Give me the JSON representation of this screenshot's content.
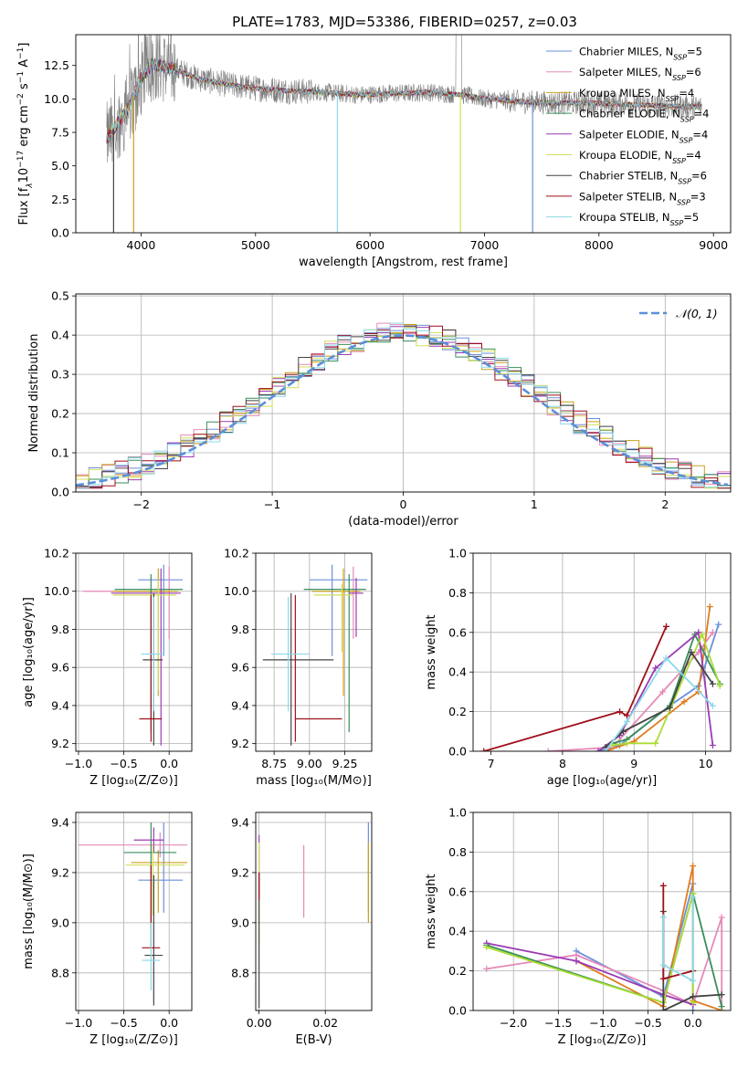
{
  "figure": {
    "title": "PLATE=1783, MJD=53386, FIBERID=0257, z=0.03"
  },
  "colors": {
    "spec_obs": "#808080",
    "normal": "#5b8fd9",
    "models": [
      "#6a8fdb",
      "#e68ab8",
      "#c8a21a",
      "#3a8e5a",
      "#9b3bb5",
      "#d4de5a",
      "#444444",
      "#a00f1a",
      "#8cd8e8"
    ],
    "weights_orange": "#e07b1f",
    "weights_lime": "#aadd33"
  },
  "chart_data": [
    {
      "type": "line",
      "id": "spectrum",
      "xlabel": "wavelength [Angstrom, rest frame]",
      "ylabel_parts": [
        "Flux [f",
        "λ",
        "10",
        "−17",
        " erg cm",
        "−2",
        " s",
        "−1",
        " A",
        "−1",
        "]"
      ],
      "xlim": [
        3430,
        9150
      ],
      "ylim": [
        0,
        14.8
      ],
      "x_ticks": [
        4000,
        5000,
        6000,
        7000,
        8000,
        9000
      ],
      "x_tick_labels": [
        "4000",
        "5000",
        "6000",
        "7000",
        "8000",
        "9000"
      ],
      "y_ticks": [
        0,
        2.5,
        5,
        7.5,
        10,
        12.5
      ],
      "y_tick_labels": [
        "0.0",
        "2.5",
        "5.0",
        "7.5",
        "10.0",
        "12.5"
      ],
      "grid": false,
      "legend_position": "top-right",
      "series": [
        {
          "name": "Chabrier MILES, N",
          "sub": "SSP",
          "suffix": "=5"
        },
        {
          "name": "Salpeter MILES, N",
          "sub": "SSP",
          "suffix": "=6"
        },
        {
          "name": "Kroupa MILES, N",
          "sub": "SSP",
          "suffix": "=4"
        },
        {
          "name": "Chabrier ELODIE, N",
          "sub": "SSP",
          "suffix": "=4"
        },
        {
          "name": "Salpeter ELODIE, N",
          "sub": "SSP",
          "suffix": "=4"
        },
        {
          "name": "Kroupa ELODIE, N",
          "sub": "SSP",
          "suffix": "=4"
        },
        {
          "name": "Chabrier STELIB, N",
          "sub": "SSP",
          "suffix": "=6"
        },
        {
          "name": "Salpeter STELIB, N",
          "sub": "SSP",
          "suffix": "=3"
        },
        {
          "name": "Kroupa STELIB, N",
          "sub": "SSP",
          "suffix": "=5"
        }
      ],
      "continuum_x": [
        3700,
        3900,
        4000,
        4100,
        4300,
        4500,
        4800,
        5000,
        5300,
        5600,
        5900,
        6200,
        6500,
        6800,
        7000,
        7300,
        7600,
        7900,
        8200,
        8500,
        8900
      ],
      "continuum_y": [
        7.0,
        9.5,
        11.5,
        12.6,
        12.2,
        11.5,
        11.0,
        10.8,
        10.6,
        10.5,
        10.3,
        10.4,
        10.5,
        10.3,
        10.0,
        9.8,
        9.7,
        9.7,
        9.6,
        9.5,
        9.4
      ],
      "absorption_lines": [
        {
          "x": 3760,
          "depth": 0.0,
          "series": 6
        },
        {
          "x": 3935,
          "depth": 0.0,
          "series": 2
        },
        {
          "x": 5715,
          "depth": 0.0,
          "series": 8
        },
        {
          "x": 6790,
          "depth": 0.0,
          "series": 5
        },
        {
          "x": 7420,
          "depth": 0.0,
          "series": 0
        }
      ]
    },
    {
      "type": "histogram",
      "id": "residuals",
      "xlabel": "(data-model)/error",
      "ylabel": "Normed distribution",
      "xlim": [
        -2.5,
        2.5
      ],
      "ylim": [
        0,
        0.505
      ],
      "x_ticks": [
        -2,
        -1,
        0,
        1,
        2
      ],
      "x_tick_labels": [
        "−2",
        "−1",
        "0",
        "1",
        "2"
      ],
      "y_ticks": [
        0,
        0.1,
        0.2,
        0.3,
        0.4,
        0.5
      ],
      "y_tick_labels": [
        "0.0",
        "0.1",
        "0.2",
        "0.3",
        "0.4",
        "0.5"
      ],
      "grid": true,
      "bin_width": 0.1,
      "legend": {
        "label": "𝒩(0, 1)",
        "position": "top-right"
      },
      "reference_curve": "normal(0,1)"
    },
    {
      "type": "scatter",
      "id": "age_vs_Z",
      "xlabel": "Z [log₁₀(Z/Z⊙)]",
      "ylabel": "age  [log₁₀(age/yr)]",
      "xlim": [
        -1.03,
        0.25
      ],
      "ylim": [
        9.16,
        10.2
      ],
      "x_ticks": [
        -1.0,
        -0.5,
        0.0
      ],
      "x_tick_labels": [
        "−1.0",
        "−0.5",
        "0.0"
      ],
      "y_ticks": [
        9.2,
        9.4,
        9.6,
        9.8,
        10.0,
        10.2
      ],
      "y_tick_labels": [
        "9.2",
        "9.4",
        "9.6",
        "9.8",
        "10.0",
        "10.2"
      ],
      "grid": true,
      "points": [
        {
          "x": -0.06,
          "xerr": [
            0.28,
            0.21
          ],
          "y": 10.06,
          "yerr": [
            0.4,
            0.08
          ],
          "series": 0
        },
        {
          "x": 0.0,
          "xerr": [
            0.95,
            0.01
          ],
          "y": 10.0,
          "yerr": [
            0.25,
            0.13
          ],
          "series": 1
        },
        {
          "x": -0.12,
          "xerr": [
            0.5,
            0.22
          ],
          "y": 10.0,
          "yerr": [
            0.55,
            0.12
          ],
          "series": 2
        },
        {
          "x": -0.2,
          "xerr": [
            0.4,
            0.35
          ],
          "y": 10.01,
          "yerr": [
            0.75,
            0.08
          ],
          "series": 3
        },
        {
          "x": -0.09,
          "xerr": [
            0.55,
            0.22
          ],
          "y": 9.99,
          "yerr": [
            0.8,
            0.13
          ],
          "series": 4
        },
        {
          "x": -0.12,
          "xerr": [
            0.5,
            0.2
          ],
          "y": 9.98,
          "yerr": [
            0.5,
            0.08
          ],
          "series": 5
        },
        {
          "x": -0.17,
          "xerr": [
            0.12,
            0.1
          ],
          "y": 9.64,
          "yerr": [
            0.45,
            0.35
          ],
          "series": 6
        },
        {
          "x": -0.2,
          "xerr": [
            0.13,
            0.12
          ],
          "y": 9.33,
          "yerr": [
            0.12,
            0.65
          ],
          "series": 7
        },
        {
          "x": -0.17,
          "xerr": [
            0.14,
            0.12
          ],
          "y": 9.67,
          "yerr": [
            0.3,
            0.3
          ],
          "series": 8
        }
      ]
    },
    {
      "type": "scatter",
      "id": "age_vs_mass",
      "xlabel": "mass [log₁₀(M/M⊙)]",
      "ylabel": "",
      "xlim": [
        8.62,
        9.44
      ],
      "ylim": [
        9.16,
        10.2
      ],
      "x_ticks": [
        8.75,
        9.0,
        9.25
      ],
      "x_tick_labels": [
        "8.75",
        "9.00",
        "9.25"
      ],
      "y_ticks": [
        9.2,
        9.4,
        9.6,
        9.8,
        10.0,
        10.2
      ],
      "y_tick_labels": [
        "9.2",
        "9.4",
        "9.6",
        "9.8",
        "10.0",
        "10.2"
      ],
      "grid": true,
      "points": [
        {
          "x": 9.16,
          "xerr": [
            0.16,
            0.25
          ],
          "y": 10.06,
          "yerr": [
            0.4,
            0.08
          ],
          "series": 0
        },
        {
          "x": 9.31,
          "xerr": [
            0.05,
            0.05
          ],
          "y": 10.0,
          "yerr": [
            0.25,
            0.13
          ],
          "series": 1
        },
        {
          "x": 9.24,
          "xerr": [
            0.22,
            0.12
          ],
          "y": 10.0,
          "yerr": [
            0.55,
            0.12
          ],
          "series": 2
        },
        {
          "x": 9.28,
          "xerr": [
            0.32,
            0.12
          ],
          "y": 10.01,
          "yerr": [
            0.75,
            0.08
          ],
          "series": 3
        },
        {
          "x": 9.33,
          "xerr": [
            0.05,
            0.05
          ],
          "y": 9.99,
          "yerr": [
            0.23,
            0.08
          ],
          "series": 4
        },
        {
          "x": 9.23,
          "xerr": [
            0.2,
            0.08
          ],
          "y": 9.98,
          "yerr": [
            0.3,
            0.06
          ],
          "series": 5
        },
        {
          "x": 8.87,
          "xerr": [
            0.2,
            0.3
          ],
          "y": 9.64,
          "yerr": [
            0.45,
            0.35
          ],
          "series": 6
        },
        {
          "x": 8.9,
          "xerr": [
            0.0,
            0.33
          ],
          "y": 9.33,
          "yerr": [
            0.12,
            0.65
          ],
          "series": 7
        },
        {
          "x": 8.85,
          "xerr": [
            0.12,
            0.15
          ],
          "y": 9.67,
          "yerr": [
            0.3,
            0.3
          ],
          "series": 8
        }
      ]
    },
    {
      "type": "line",
      "id": "massweight_vs_age",
      "xlabel": "age  [log₁₀(age/yr)]",
      "ylabel": "mass weight",
      "xlim": [
        6.75,
        10.35
      ],
      "ylim": [
        0,
        1.0
      ],
      "x_ticks": [
        7,
        8,
        9,
        10
      ],
      "x_tick_labels": [
        "7",
        "8",
        "9",
        "10"
      ],
      "y_ticks": [
        0,
        0.2,
        0.4,
        0.6,
        0.8,
        1.0
      ],
      "y_tick_labels": [
        "0.0",
        "0.2",
        "0.4",
        "0.6",
        "0.8",
        "1.0"
      ],
      "grid": true,
      "series": [
        {
          "color": "#6a8fdb",
          "x": [
            8.5,
            8.8,
            9.5,
            9.9,
            10.18
          ],
          "y": [
            0.0,
            0.03,
            0.23,
            0.33,
            0.64
          ]
        },
        {
          "color": "#e68ab8",
          "x": [
            7.8,
            8.7,
            9.4,
            9.9,
            10.1
          ],
          "y": [
            0.0,
            0.02,
            0.3,
            0.5,
            0.6
          ]
        },
        {
          "color": "#e07b1f",
          "x": [
            8.6,
            9.0,
            9.7,
            9.9,
            10.06
          ],
          "y": [
            0.0,
            0.05,
            0.25,
            0.3,
            0.73
          ]
        },
        {
          "color": "#3a8e5a",
          "x": [
            8.7,
            8.9,
            9.5,
            9.85,
            10.2
          ],
          "y": [
            0.04,
            0.06,
            0.23,
            0.59,
            0.34
          ]
        },
        {
          "color": "#9b3bb5",
          "x": [
            8.5,
            8.8,
            9.3,
            9.9,
            10.1
          ],
          "y": [
            0.0,
            0.08,
            0.42,
            0.6,
            0.03
          ]
        },
        {
          "color": "#aadd33",
          "x": [
            8.7,
            8.9,
            9.3,
            9.95,
            10.2
          ],
          "y": [
            0.03,
            0.04,
            0.04,
            0.59,
            0.33
          ]
        },
        {
          "color": "#444444",
          "x": [
            8.6,
            8.85,
            9.5,
            9.8,
            10.1
          ],
          "y": [
            0.02,
            0.1,
            0.22,
            0.5,
            0.34
          ]
        },
        {
          "color": "#a00f1a",
          "x": [
            6.9,
            8.8,
            8.9,
            9.45
          ],
          "y": [
            0.0,
            0.2,
            0.18,
            0.63
          ]
        },
        {
          "color": "#8cd8e8",
          "x": [
            8.6,
            8.9,
            9.45,
            10.1
          ],
          "y": [
            0.0,
            0.15,
            0.47,
            0.23
          ]
        }
      ]
    },
    {
      "type": "scatter",
      "id": "mass_vs_Z",
      "xlabel": "Z [log₁₀(Z/Z⊙)]",
      "ylabel": "mass [log₁₀(M/M⊙)]",
      "xlim": [
        -1.03,
        0.25
      ],
      "ylim": [
        8.65,
        9.44
      ],
      "x_ticks": [
        -1.0,
        -0.5,
        0.0
      ],
      "x_tick_labels": [
        "−1.0",
        "−0.5",
        "0.0"
      ],
      "y_ticks": [
        8.8,
        9.0,
        9.2,
        9.4
      ],
      "y_tick_labels": [
        "8.8",
        "9.0",
        "9.2",
        "9.4"
      ],
      "grid": true,
      "points": [
        {
          "x": -0.06,
          "xerr": [
            0.28,
            0.21
          ],
          "y": 9.17,
          "yerr": [
            0.13,
            0.23
          ],
          "series": 0
        },
        {
          "x": -0.1,
          "xerr": [
            0.9,
            0.3
          ],
          "y": 9.31,
          "yerr": [
            0.05,
            0.05
          ],
          "series": 1
        },
        {
          "x": -0.12,
          "xerr": [
            0.3,
            0.32
          ],
          "y": 9.24,
          "yerr": [
            0.2,
            0.05
          ],
          "series": 2
        },
        {
          "x": -0.2,
          "xerr": [
            0.3,
            0.28
          ],
          "y": 9.28,
          "yerr": [
            0.3,
            0.12
          ],
          "series": 3
        },
        {
          "x": -0.17,
          "xerr": [
            0.22,
            0.11
          ],
          "y": 9.33,
          "yerr": [
            0.05,
            0.05
          ],
          "series": 4
        },
        {
          "x": -0.18,
          "xerr": [
            0.3,
            0.35
          ],
          "y": 9.23,
          "yerr": [
            0.2,
            0.08
          ],
          "series": 5
        },
        {
          "x": -0.17,
          "xerr": [
            0.1,
            0.1
          ],
          "y": 8.87,
          "yerr": [
            0.2,
            0.32
          ],
          "series": 6
        },
        {
          "x": -0.2,
          "xerr": [
            0.1,
            0.1
          ],
          "y": 8.9,
          "yerr": [
            0.0,
            0.33
          ],
          "series": 7
        },
        {
          "x": -0.2,
          "xerr": [
            0.1,
            0.1
          ],
          "y": 8.85,
          "yerr": [
            0.12,
            0.15
          ],
          "series": 8
        }
      ]
    },
    {
      "type": "scatter",
      "id": "mass_vs_ebv",
      "xlabel": "E(B-V)",
      "ylabel": "",
      "xlim": [
        -0.001,
        0.034
      ],
      "ylim": [
        8.65,
        9.44
      ],
      "x_ticks": [
        0.0,
        0.02
      ],
      "x_tick_labels": [
        "0.00",
        "0.02"
      ],
      "y_ticks": [
        8.8,
        9.0,
        9.2,
        9.4
      ],
      "y_tick_labels": [
        "8.8",
        "9.0",
        "9.2",
        "9.4"
      ],
      "grid": true,
      "points": [
        {
          "x": 0.0,
          "y": 9.2,
          "yerr": [
            0.1,
            0.15
          ],
          "series": 4
        },
        {
          "x": 0.0,
          "y": 9.1,
          "yerr": [
            0.2,
            0.22
          ],
          "series": 5
        },
        {
          "x": 0.0,
          "y": 8.9,
          "yerr": [
            0.24,
            0.3
          ],
          "series": 6
        },
        {
          "x": 0.0,
          "y": 9.15,
          "yerr": [
            0.06,
            0.05
          ],
          "series": 7
        },
        {
          "x": 0.0135,
          "y": 9.16,
          "yerr": [
            0.14,
            0.15
          ],
          "series": 1
        },
        {
          "x": 0.033,
          "y": 9.17,
          "yerr": [
            0.13,
            0.23
          ],
          "series": 0
        },
        {
          "x": 0.033,
          "y": 9.2,
          "yerr": [
            0.2,
            0.12
          ],
          "series": 2
        }
      ]
    },
    {
      "type": "line",
      "id": "massweight_vs_Z",
      "xlabel": "Z [log₁₀(Z/Z⊙)]",
      "ylabel": "mass weight",
      "xlim": [
        -2.45,
        0.42
      ],
      "ylim": [
        0,
        1.0
      ],
      "x_ticks": [
        -2.0,
        -1.5,
        -1.0,
        -0.5,
        0.0
      ],
      "x_tick_labels": [
        "−2.0",
        "−1.5",
        "−1.0",
        "−0.5",
        "0.0"
      ],
      "y_ticks": [
        0,
        0.2,
        0.4,
        0.6,
        0.8,
        1.0
      ],
      "y_tick_labels": [
        "0.0",
        "0.2",
        "0.4",
        "0.6",
        "0.8",
        "1.0"
      ],
      "grid": true,
      "series": [
        {
          "color": "#6a8fdb",
          "x": [
            -1.3,
            -0.33,
            0.0,
            0.0
          ],
          "y": [
            0.3,
            0.07,
            0.64,
            0.0
          ]
        },
        {
          "color": "#e68ab8",
          "x": [
            -2.3,
            -1.3,
            -0.33,
            0.0,
            0.32,
            0.32
          ],
          "y": [
            0.21,
            0.28,
            0.1,
            0.03,
            0.47,
            0.0
          ]
        },
        {
          "color": "#e07b1f",
          "x": [
            -1.3,
            -0.33,
            0.0,
            0.0,
            0.32
          ],
          "y": [
            0.25,
            0.02,
            0.73,
            0.05,
            0.0
          ]
        },
        {
          "color": "#3a8e5a",
          "x": [
            -2.3,
            -0.33,
            0.0,
            0.32
          ],
          "y": [
            0.33,
            0.04,
            0.59,
            0.02
          ]
        },
        {
          "color": "#9b3bb5",
          "x": [
            -2.3,
            -1.3,
            -0.33,
            0.0
          ],
          "y": [
            0.34,
            0.25,
            0.08,
            0.03
          ]
        },
        {
          "color": "#aadd33",
          "x": [
            -2.3,
            -0.33,
            0.0,
            0.0
          ],
          "y": [
            0.32,
            0.04,
            0.59,
            0.04
          ]
        },
        {
          "color": "#444444",
          "x": [
            -0.33,
            -0.33,
            0.0,
            0.32
          ],
          "y": [
            0.5,
            0.0,
            0.07,
            0.08
          ]
        },
        {
          "color": "#a00f1a",
          "x": [
            -0.33,
            -0.33,
            0.0
          ],
          "y": [
            0.63,
            0.16,
            0.2
          ]
        },
        {
          "color": "#8cd8e8",
          "x": [
            -0.33,
            -0.33,
            0.0,
            0.0
          ],
          "y": [
            0.47,
            0.23,
            0.15,
            0.57
          ]
        }
      ]
    }
  ]
}
